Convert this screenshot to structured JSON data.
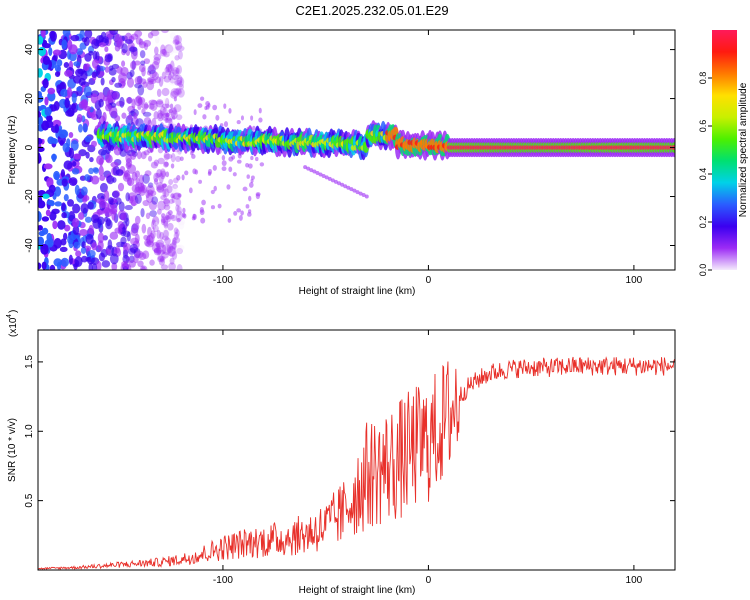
{
  "title": "C2E1.2025.232.05.01.E29",
  "colors": {
    "trace": "#e8302a",
    "axis": "#000000",
    "background": "#ffffff"
  },
  "chart_data": [
    {
      "type": "heatmap",
      "title": "C2E1.2025.232.05.01.E29",
      "xlabel": "Height of straight line (km)",
      "ylabel": "Frequency (Hz)",
      "xlim": [
        -190,
        120
      ],
      "ylim": [
        -50,
        48
      ],
      "xticks": [
        -100,
        0,
        100
      ],
      "yticks": [
        -40,
        -20,
        0,
        20,
        40
      ],
      "colorbar": {
        "label": "Normalized spectral amplitude",
        "range": [
          0,
          1
        ],
        "ticks": [
          "0.0",
          "0.2",
          "0.4",
          "0.6",
          "0.8"
        ],
        "colormap": [
          "#f4eafc",
          "#9c2cf5",
          "#3a00f0",
          "#2a5dff",
          "#00d2e8",
          "#00e070",
          "#4cf000",
          "#c8f000",
          "#ffe000",
          "#ff7a00",
          "#ff1a10",
          "#ff1a5a"
        ]
      },
      "description_points": {
        "dominant_line_frequency_hz": 0,
        "dominant_line_start_km": -10,
        "noise_region_km": [
          -190,
          -130
        ]
      }
    },
    {
      "type": "line",
      "xlabel": "Height of straight line (km)",
      "ylabel": "SNR (10 * v/v)",
      "yscale_label": "(x10",
      "yscale_exp": "4",
      "xlim": [
        -190,
        120
      ],
      "ylim": [
        0,
        1.73
      ],
      "xticks": [
        -100,
        0,
        100
      ],
      "yticks": [
        0.5,
        1.0,
        1.5
      ],
      "ytick_labels": [
        "0.5",
        "1.0",
        "1.5"
      ],
      "series": [
        {
          "name": "SNR",
          "color": "#e8302a",
          "x": [
            -190,
            -170,
            -150,
            -130,
            -120,
            -110,
            -100,
            -90,
            -80,
            -70,
            -60,
            -50,
            -40,
            -35,
            -30,
            -25,
            -20,
            -15,
            -10,
            -5,
            0,
            5,
            10,
            15,
            20,
            25,
            30,
            40,
            50,
            60,
            70,
            80,
            90,
            100,
            110,
            120
          ],
          "y": [
            0.01,
            0.02,
            0.04,
            0.06,
            0.08,
            0.12,
            0.17,
            0.2,
            0.22,
            0.24,
            0.27,
            0.33,
            0.45,
            0.58,
            0.68,
            0.72,
            0.75,
            0.78,
            0.84,
            0.9,
            0.92,
            1.02,
            1.12,
            1.25,
            1.33,
            1.38,
            1.42,
            1.45,
            1.46,
            1.46,
            1.47,
            1.47,
            1.47,
            1.47,
            1.47,
            1.47
          ]
        }
      ]
    }
  ]
}
